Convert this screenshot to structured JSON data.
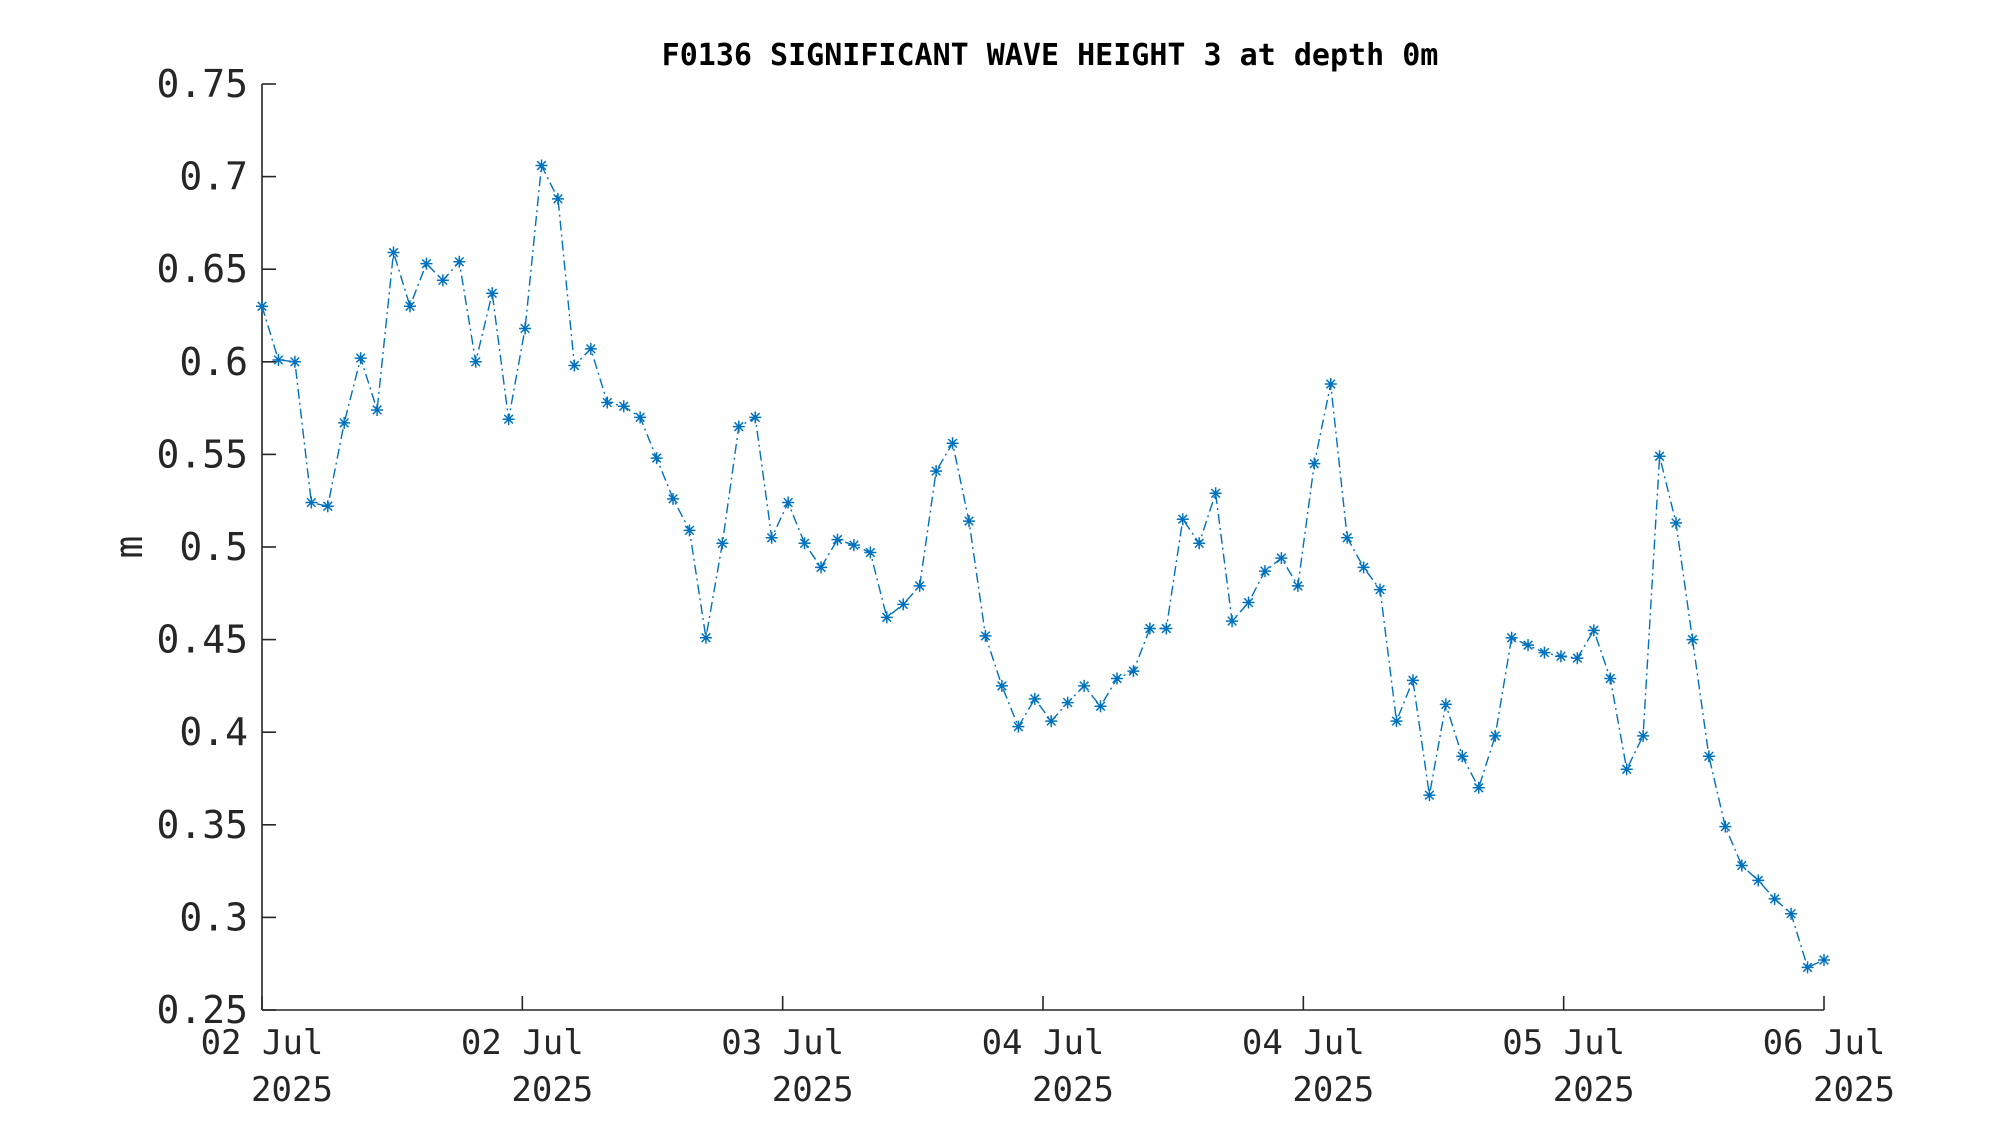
{
  "chart_data": {
    "type": "line",
    "title": "F0136 SIGNIFICANT WAVE HEIGHT 3 at depth 0m",
    "xlabel": "",
    "ylabel": "m",
    "ylim": [
      0.25,
      0.75
    ],
    "yticks": [
      "0.25",
      "0.3",
      "0.35",
      "0.4",
      "0.45",
      "0.5",
      "0.55",
      "0.6",
      "0.65",
      "0.7",
      "0.75"
    ],
    "xticks": [
      {
        "line1": "02 Jul",
        "line2": "2025"
      },
      {
        "line1": "02 Jul",
        "line2": "2025"
      },
      {
        "line1": "03 Jul",
        "line2": "2025"
      },
      {
        "line1": "04 Jul",
        "line2": "2025"
      },
      {
        "line1": "04 Jul",
        "line2": "2025"
      },
      {
        "line1": "05 Jul",
        "line2": "2025"
      },
      {
        "line1": "06 Jul",
        "line2": "2025"
      }
    ],
    "line_style": "dash-dot",
    "marker": "asterisk",
    "color": "#0072BD",
    "grid": false,
    "series": [
      {
        "values": [
          0.63,
          0.601,
          0.6,
          0.524,
          0.522,
          0.567,
          0.602,
          0.574,
          0.659,
          0.63,
          0.653,
          0.644,
          0.654,
          0.6,
          0.637,
          0.569,
          0.618,
          0.706,
          0.688,
          0.598,
          0.607,
          0.578,
          0.576,
          0.57,
          0.548,
          0.526,
          0.509,
          0.451,
          0.502,
          0.565,
          0.57,
          0.505,
          0.524,
          0.502,
          0.489,
          0.504,
          0.501,
          0.497,
          0.462,
          0.469,
          0.479,
          0.541,
          0.556,
          0.514,
          0.452,
          0.425,
          0.403,
          0.418,
          0.406,
          0.416,
          0.425,
          0.414,
          0.429,
          0.433,
          0.456,
          0.456,
          0.515,
          0.502,
          0.529,
          0.46,
          0.47,
          0.487,
          0.494,
          0.479,
          0.545,
          0.588,
          0.505,
          0.489,
          0.477,
          0.406,
          0.428,
          0.366,
          0.415,
          0.387,
          0.37,
          0.398,
          0.451,
          0.447,
          0.443,
          0.441,
          0.44,
          0.455,
          0.429,
          0.38,
          0.398,
          0.549,
          0.513,
          0.45,
          0.387,
          0.349,
          0.328,
          0.32,
          0.31,
          0.302,
          0.273,
          0.277
        ]
      }
    ]
  }
}
